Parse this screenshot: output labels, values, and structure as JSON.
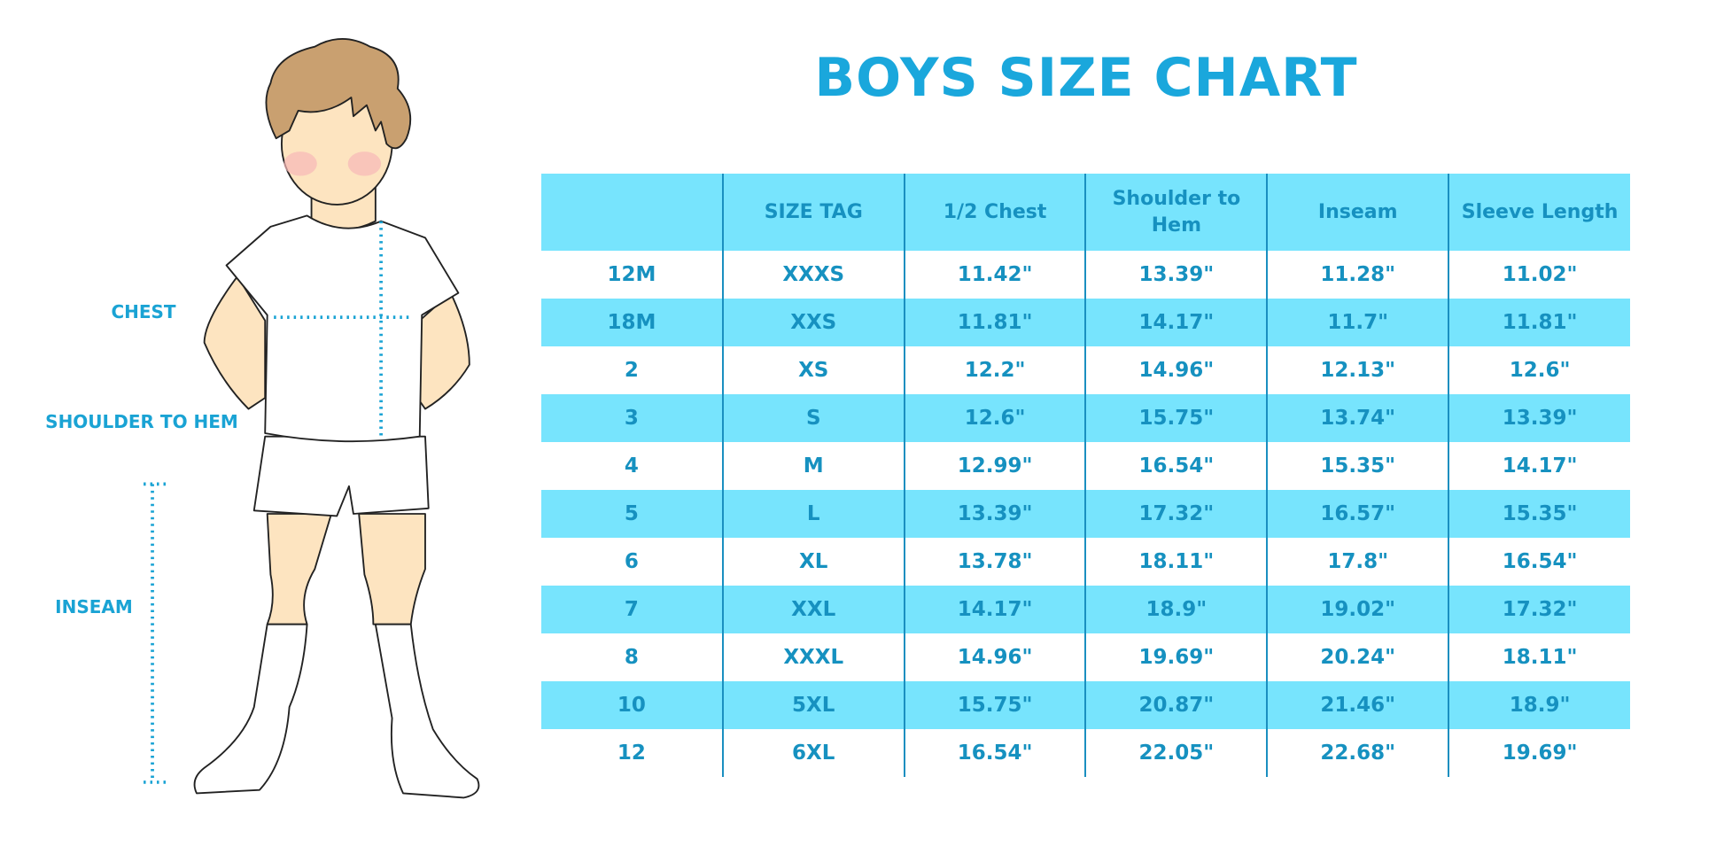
{
  "title": "BOYS SIZE CHART",
  "measure_labels": {
    "chest": "CHEST",
    "shoulder_to_hem": "SHOULDER TO HEM",
    "inseam": "INSEAM"
  },
  "colors": {
    "accent": "#1AA7DC",
    "header_bg": "#77E4FD",
    "text": "#1691C0"
  },
  "table": {
    "headers": [
      "",
      "SIZE TAG",
      "1/2 Chest",
      "Shoulder to Hem",
      "Inseam",
      "Sleeve Length"
    ],
    "rows": [
      [
        "12M",
        "XXXS",
        "11.42\"",
        "13.39\"",
        "11.28\"",
        "11.02\""
      ],
      [
        "18M",
        "XXS",
        "11.81\"",
        "14.17\"",
        "11.7\"",
        "11.81\""
      ],
      [
        "2",
        "XS",
        "12.2\"",
        "14.96\"",
        "12.13\"",
        "12.6\""
      ],
      [
        "3",
        "S",
        "12.6\"",
        "15.75\"",
        "13.74\"",
        "13.39\""
      ],
      [
        "4",
        "M",
        "12.99\"",
        "16.54\"",
        "15.35\"",
        "14.17\""
      ],
      [
        "5",
        "L",
        "13.39\"",
        "17.32\"",
        "16.57\"",
        "15.35\""
      ],
      [
        "6",
        "XL",
        "13.78\"",
        "18.11\"",
        "17.8\"",
        "16.54\""
      ],
      [
        "7",
        "XXL",
        "14.17\"",
        "18.9\"",
        "19.02\"",
        "17.32\""
      ],
      [
        "8",
        "XXXL",
        "14.96\"",
        "19.69\"",
        "20.24\"",
        "18.11\""
      ],
      [
        "10",
        "5XL",
        "15.75\"",
        "20.87\"",
        "21.46\"",
        "18.9\""
      ],
      [
        "12",
        "6XL",
        "16.54\"",
        "22.05\"",
        "22.68\"",
        "19.69\""
      ]
    ]
  }
}
